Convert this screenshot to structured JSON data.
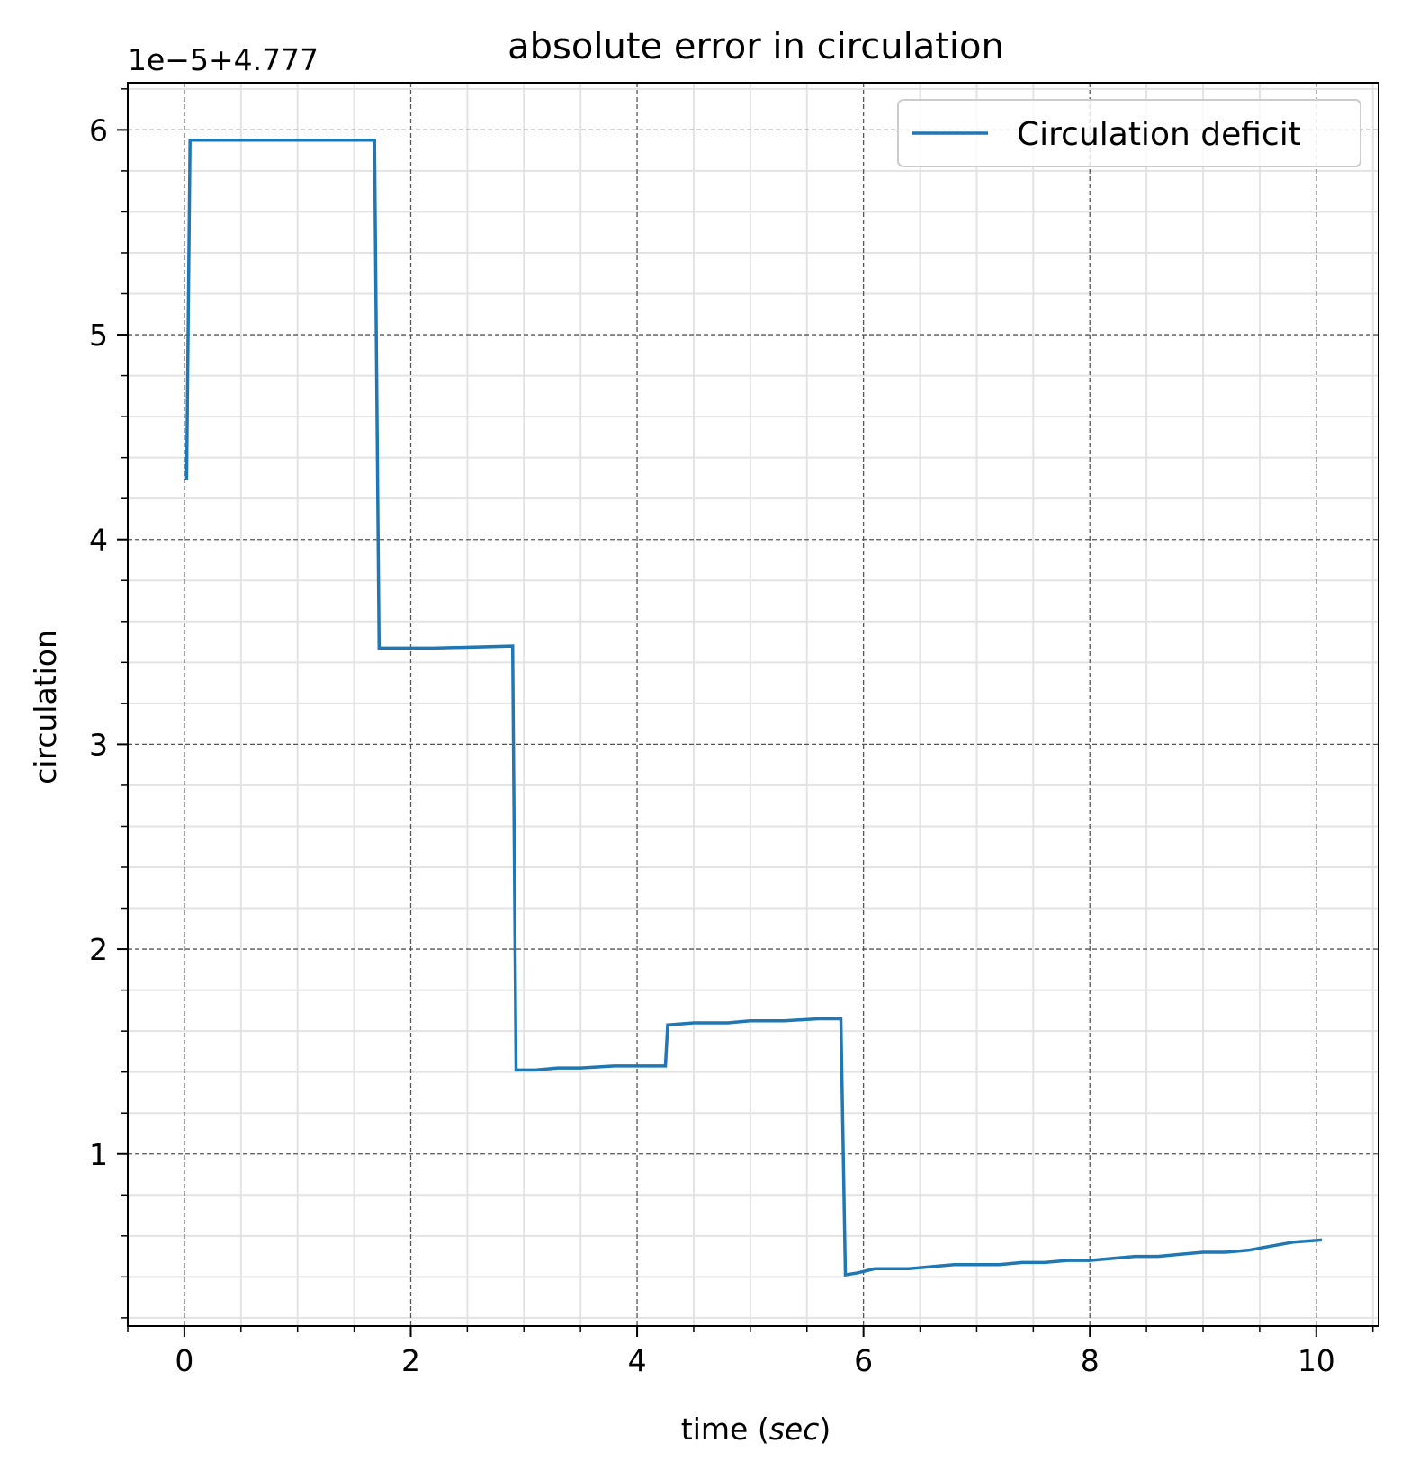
{
  "chart_data": {
    "type": "line",
    "title": "absolute error in circulation",
    "xlabel": "time (sec)",
    "xlabel_parts": {
      "prefix": "time (",
      "italic": "sec",
      "suffix": ")"
    },
    "ylabel": "circulation",
    "y_offset_text": "1e−5+4.777",
    "xlim": [
      -0.5,
      10.55
    ],
    "ylim": [
      0.16,
      6.23
    ],
    "x_major_ticks": [
      0,
      2,
      4,
      6,
      8,
      10
    ],
    "x_tick_labels": [
      "0",
      "2",
      "4",
      "6",
      "8",
      "10"
    ],
    "x_minor_step": 0.5,
    "y_major_ticks": [
      1,
      2,
      3,
      4,
      5,
      6
    ],
    "y_tick_labels": [
      "1",
      "2",
      "3",
      "4",
      "5",
      "6"
    ],
    "y_minor_step": 0.2,
    "grid": {
      "major": "dashed",
      "minor": "solid-light"
    },
    "legend": {
      "position": "top-right"
    },
    "series": [
      {
        "name": "Circulation deficit",
        "color": "#1f77b4",
        "x": [
          0.02,
          0.05,
          0.5,
          1.0,
          1.3,
          1.68,
          1.72,
          2.2,
          2.9,
          2.93,
          2.96,
          3.1,
          3.3,
          3.5,
          3.8,
          4.1,
          4.25,
          4.27,
          4.5,
          4.8,
          5.0,
          5.3,
          5.6,
          5.8,
          5.84,
          5.95,
          6.1,
          6.4,
          6.6,
          6.8,
          7.0,
          7.2,
          7.4,
          7.6,
          7.8,
          8.0,
          8.2,
          8.4,
          8.6,
          8.8,
          9.0,
          9.2,
          9.4,
          9.6,
          9.8,
          10.05
        ],
        "y": [
          4.29,
          5.95,
          5.95,
          5.95,
          5.95,
          5.95,
          3.47,
          3.47,
          3.48,
          1.41,
          1.41,
          1.41,
          1.42,
          1.42,
          1.43,
          1.43,
          1.43,
          1.63,
          1.64,
          1.64,
          1.65,
          1.65,
          1.66,
          1.66,
          0.41,
          0.42,
          0.44,
          0.44,
          0.45,
          0.46,
          0.46,
          0.46,
          0.47,
          0.47,
          0.48,
          0.48,
          0.49,
          0.5,
          0.5,
          0.51,
          0.52,
          0.52,
          0.53,
          0.55,
          0.57,
          0.58
        ]
      }
    ]
  }
}
